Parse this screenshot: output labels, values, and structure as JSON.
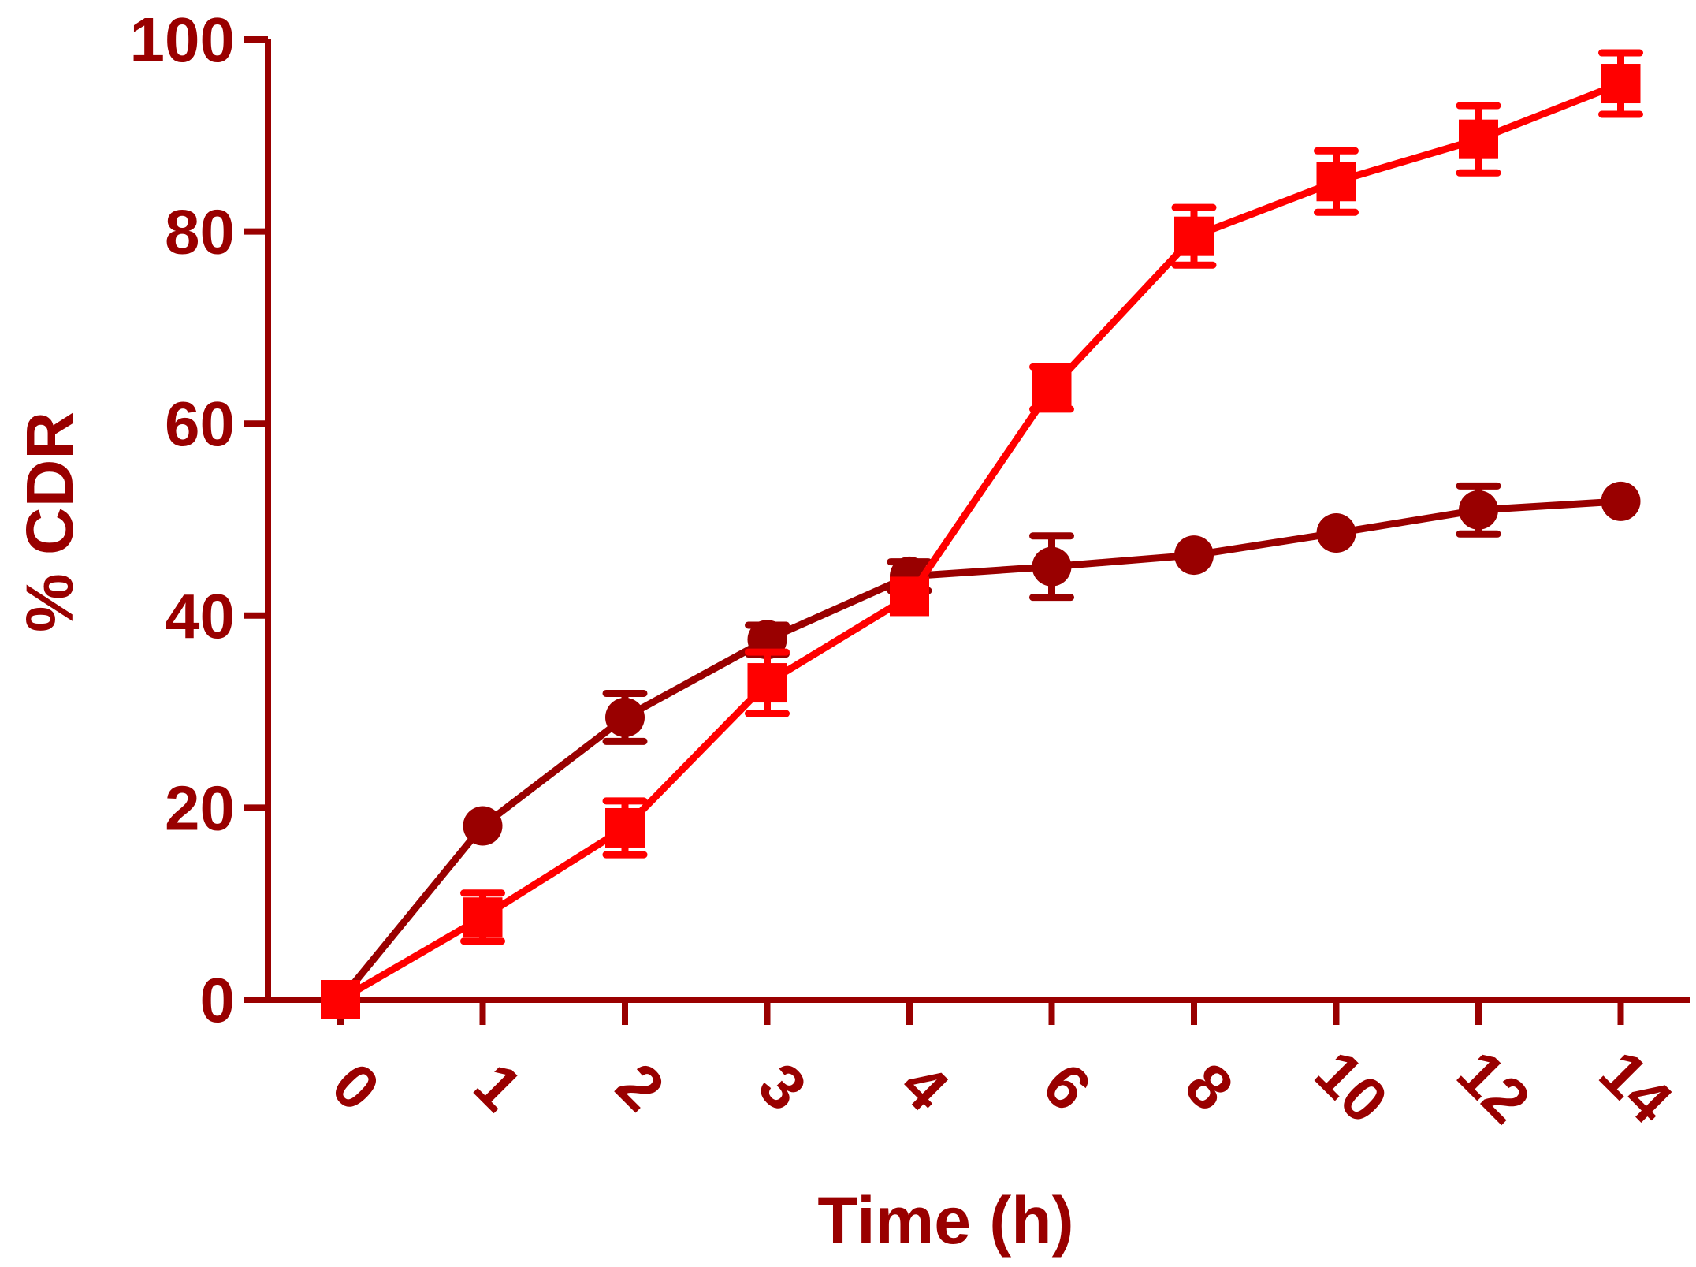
{
  "chart_data": {
    "type": "line",
    "title": "",
    "xlabel": "Time (h)",
    "ylabel": "% CDR",
    "categories": [
      "0",
      "1",
      "2",
      "3",
      "4",
      "6",
      "8",
      "10",
      "12",
      "14"
    ],
    "ylim": [
      0,
      100
    ],
    "yticks": [
      "0",
      "20",
      "40",
      "60",
      "80",
      "100"
    ],
    "grid": false,
    "legend": "none",
    "axis_color": "#990000",
    "series": [
      {
        "marker": "circle",
        "color": "#990000",
        "values": [
          0,
          18.1,
          29.4,
          37.5,
          44.1,
          45.1,
          46.3,
          48.6,
          51.0,
          51.9
        ],
        "errors": [
          0,
          0,
          2.5,
          1.5,
          1.5,
          3.2,
          0,
          0,
          2.5,
          0
        ]
      },
      {
        "marker": "square",
        "color": "#ff0000",
        "values": [
          0,
          8.6,
          17.9,
          33.0,
          42.0,
          63.7,
          79.5,
          85.2,
          89.6,
          95.4
        ],
        "errors": [
          0,
          2.5,
          2.8,
          3.2,
          0,
          2.2,
          3.0,
          3.2,
          3.5,
          3.2
        ]
      }
    ]
  }
}
